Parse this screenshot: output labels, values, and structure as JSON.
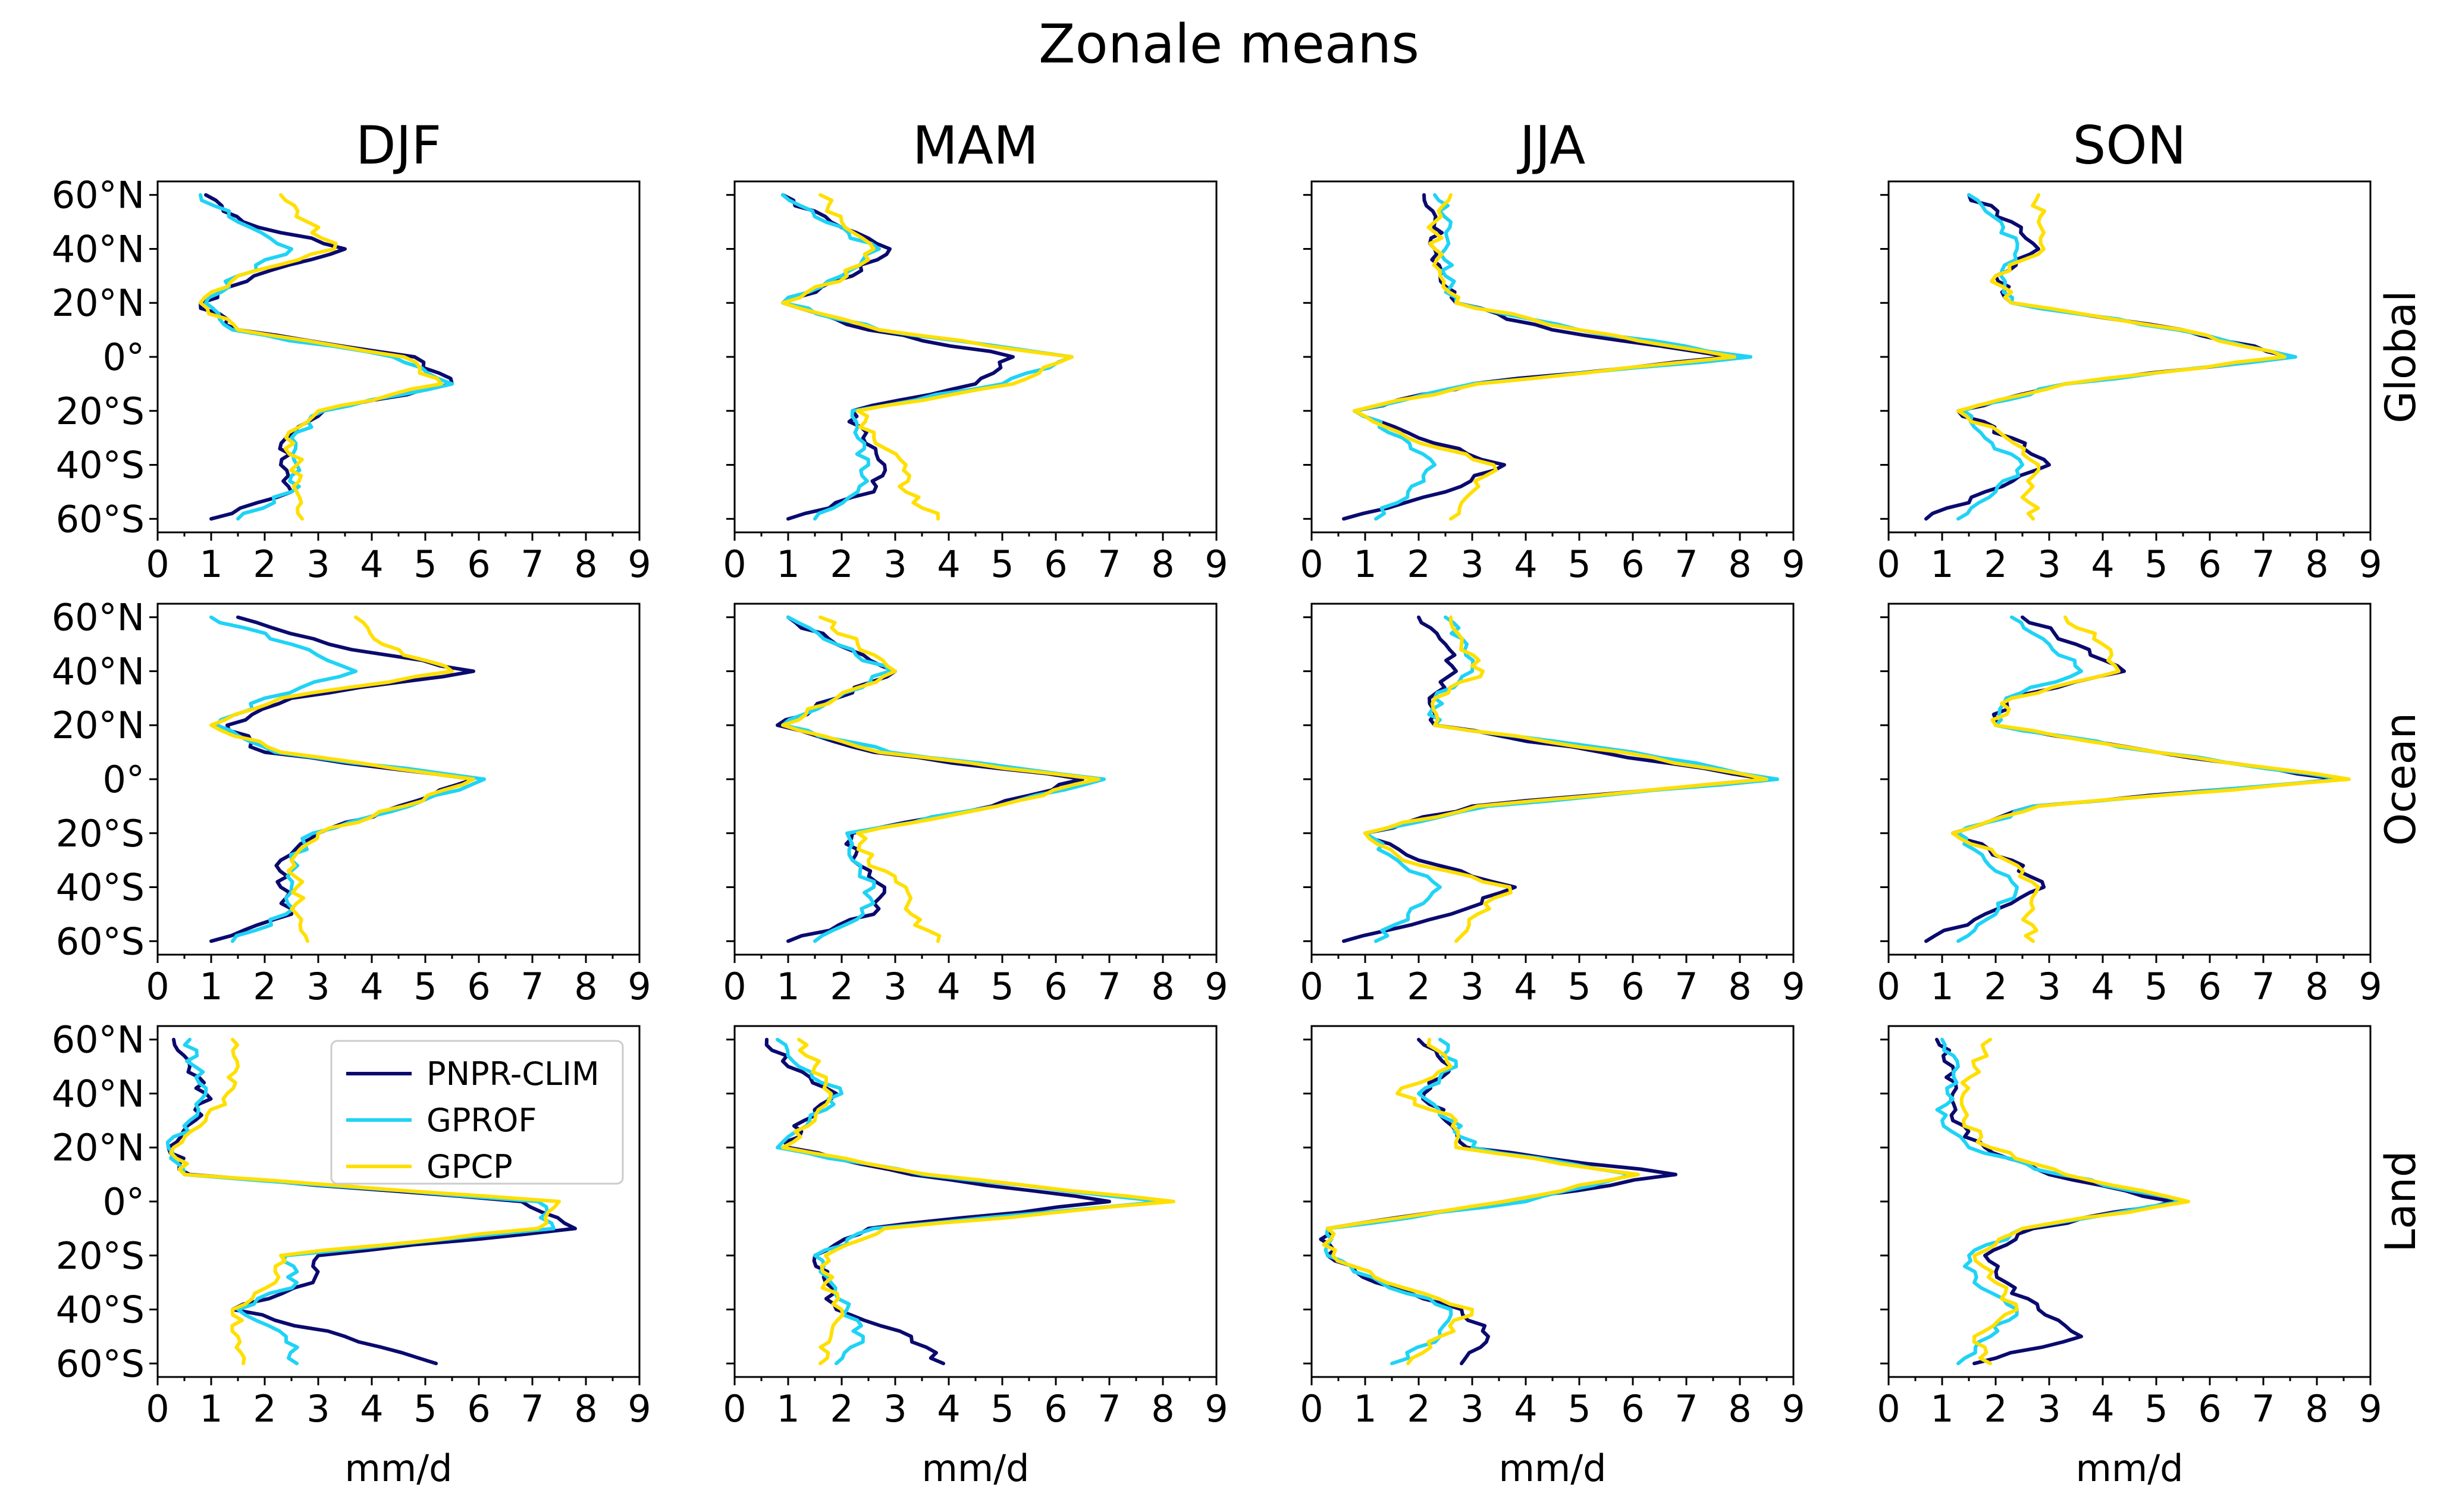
{
  "chart_data": {
    "type": "line",
    "title": "Zonale means",
    "columns": [
      "DJF",
      "MAM",
      "JJA",
      "SON"
    ],
    "rows": [
      "Global",
      "Ocean",
      "Land"
    ],
    "xlabel": "mm/d",
    "xlim": [
      0,
      9
    ],
    "ylim": [
      -65,
      65
    ],
    "x_ticks": [
      "0",
      "1",
      "2",
      "3",
      "4",
      "5",
      "6",
      "7",
      "8",
      "9"
    ],
    "y_ticks": [
      {
        "value": 60,
        "label": "60°N"
      },
      {
        "value": 40,
        "label": "40°N"
      },
      {
        "value": 20,
        "label": "20°N"
      },
      {
        "value": 0,
        "label": "0°"
      },
      {
        "value": -20,
        "label": "20°S"
      },
      {
        "value": -40,
        "label": "40°S"
      },
      {
        "value": -60,
        "label": "60°S"
      }
    ],
    "legend": {
      "location": "upper-right of Land/DJF panel",
      "entries": [
        "PNPR-CLIM",
        "GPROF",
        "GPCP"
      ]
    },
    "series_styles": [
      {
        "name": "PNPR-CLIM",
        "color": "#0a0a6e"
      },
      {
        "name": "GPROF",
        "color": "#1fd3f5"
      },
      {
        "name": "GPCP",
        "color": "#ffdf00"
      }
    ],
    "lat": [
      60,
      50,
      40,
      30,
      20,
      10,
      0,
      -10,
      -20,
      -30,
      -40,
      -50,
      -60
    ],
    "panels": [
      [
        {
          "PNPR-CLIM": [
            0.9,
            1.6,
            3.5,
            1.8,
            0.8,
            1.5,
            4.8,
            5.5,
            3.1,
            2.4,
            2.3,
            2.5,
            1.0
          ],
          "GPROF": [
            0.8,
            1.5,
            2.5,
            1.5,
            0.9,
            1.4,
            4.4,
            5.5,
            3.1,
            2.5,
            2.6,
            2.5,
            1.5
          ],
          "GPCP": [
            2.3,
            2.8,
            3.3,
            1.5,
            0.8,
            1.5,
            4.6,
            5.3,
            3.0,
            2.4,
            2.6,
            2.6,
            2.7
          ]
        },
        {
          "PNPR-CLIM": [
            0.9,
            1.8,
            2.9,
            2.2,
            0.9,
            2.5,
            5.2,
            4.5,
            2.2,
            2.4,
            2.8,
            2.6,
            1.0
          ],
          "GPROF": [
            0.9,
            1.7,
            2.7,
            2.0,
            0.9,
            2.7,
            6.3,
            5.0,
            2.2,
            2.3,
            2.5,
            2.3,
            1.5
          ],
          "GPCP": [
            1.6,
            2.0,
            2.6,
            2.1,
            0.9,
            2.7,
            6.3,
            5.2,
            2.3,
            2.6,
            3.2,
            3.2,
            3.8
          ]
        },
        {
          "PNPR-CLIM": [
            2.1,
            2.3,
            2.3,
            2.4,
            2.7,
            4.5,
            7.8,
            3.0,
            0.8,
            2.0,
            3.6,
            2.5,
            0.6
          ],
          "GPROF": [
            2.3,
            2.6,
            2.5,
            2.5,
            2.7,
            5.0,
            8.2,
            3.0,
            0.8,
            1.7,
            2.3,
            1.8,
            1.2
          ],
          "GPCP": [
            2.6,
            2.3,
            2.3,
            2.4,
            2.7,
            5.0,
            7.9,
            3.1,
            0.8,
            1.8,
            3.4,
            3.0,
            2.6
          ]
        },
        {
          "PNPR-CLIM": [
            1.5,
            2.3,
            2.8,
            2.0,
            2.3,
            5.5,
            7.5,
            3.3,
            1.3,
            2.3,
            3.0,
            1.8,
            0.7
          ],
          "GPROF": [
            1.5,
            2.1,
            2.4,
            2.1,
            2.3,
            5.4,
            7.6,
            3.3,
            1.4,
            1.8,
            2.5,
            2.0,
            1.3
          ],
          "GPCP": [
            2.8,
            2.8,
            2.9,
            2.0,
            2.3,
            5.5,
            7.4,
            3.3,
            1.3,
            2.2,
            2.8,
            2.6,
            2.7
          ]
        }
      ],
      [
        {
          "PNPR-CLIM": [
            1.5,
            3.2,
            5.9,
            2.5,
            1.3,
            2.0,
            5.9,
            4.5,
            3.0,
            2.3,
            2.3,
            2.5,
            1.0
          ],
          "GPROF": [
            1.0,
            2.5,
            3.7,
            2.0,
            1.1,
            2.2,
            6.1,
            4.7,
            2.9,
            2.5,
            2.5,
            2.4,
            1.4
          ],
          "GPCP": [
            3.7,
            4.2,
            5.5,
            2.3,
            1.0,
            2.3,
            5.9,
            4.6,
            3.0,
            2.5,
            2.6,
            2.6,
            2.8
          ]
        },
        {
          "PNPR-CLIM": [
            1.0,
            1.9,
            3.0,
            1.9,
            0.8,
            2.6,
            6.5,
            4.8,
            2.2,
            2.2,
            2.8,
            2.6,
            1.0
          ],
          "GPROF": [
            1.0,
            1.9,
            2.9,
            1.9,
            0.9,
            2.9,
            6.9,
            4.9,
            2.1,
            2.2,
            2.6,
            2.4,
            1.5
          ],
          "GPCP": [
            1.6,
            2.3,
            3.0,
            1.9,
            0.9,
            2.7,
            6.8,
            4.9,
            2.3,
            2.5,
            3.2,
            3.3,
            3.8
          ]
        },
        {
          "PNPR-CLIM": [
            2.0,
            2.5,
            2.7,
            2.2,
            2.3,
            5.4,
            8.5,
            3.0,
            1.0,
            2.0,
            3.8,
            2.6,
            0.6
          ],
          "GPROF": [
            2.5,
            2.9,
            3.0,
            2.3,
            2.3,
            6.0,
            8.7,
            3.3,
            1.0,
            1.6,
            2.4,
            1.8,
            1.2
          ],
          "GPCP": [
            2.6,
            2.8,
            3.2,
            2.3,
            2.3,
            5.8,
            8.5,
            3.1,
            1.0,
            1.7,
            3.7,
            3.1,
            2.7
          ]
        },
        {
          "PNPR-CLIM": [
            2.5,
            3.5,
            4.4,
            2.2,
            2.0,
            5.0,
            8.4,
            2.7,
            1.2,
            2.3,
            2.9,
            1.8,
            0.7
          ],
          "GPROF": [
            2.3,
            3.0,
            3.6,
            2.2,
            2.0,
            5.0,
            8.5,
            2.7,
            1.3,
            1.8,
            2.4,
            2.0,
            1.3
          ],
          "GPCP": [
            3.3,
            4.0,
            4.3,
            2.3,
            2.0,
            5.0,
            8.6,
            2.8,
            1.2,
            2.2,
            2.8,
            2.6,
            2.7
          ]
        }
      ],
      [
        {
          "PNPR-CLIM": [
            0.3,
            0.6,
            0.9,
            0.7,
            0.2,
            0.6,
            6.8,
            7.8,
            3.0,
            2.9,
            1.4,
            3.5,
            5.2
          ],
          "GPROF": [
            0.6,
            0.7,
            0.9,
            0.6,
            0.2,
            0.5,
            7.1,
            7.4,
            2.4,
            2.6,
            1.5,
            2.4,
            2.6
          ],
          "GPCP": [
            1.4,
            1.5,
            1.3,
            0.9,
            0.3,
            0.5,
            7.5,
            7.1,
            2.3,
            2.2,
            1.4,
            1.5,
            1.6
          ]
        },
        {
          "PNPR-CLIM": [
            0.6,
            1.0,
            1.9,
            1.3,
            1.0,
            3.3,
            7.0,
            2.5,
            1.5,
            1.7,
            1.9,
            3.3,
            3.9
          ],
          "GPROF": [
            0.8,
            1.2,
            2.0,
            1.4,
            0.8,
            3.5,
            8.0,
            2.6,
            1.5,
            1.8,
            2.1,
            2.4,
            1.9
          ],
          "GPCP": [
            1.2,
            1.5,
            1.8,
            1.5,
            0.9,
            3.6,
            8.2,
            2.8,
            1.7,
            1.7,
            2.0,
            1.8,
            1.6
          ]
        },
        {
          "PNPR-CLIM": [
            2.0,
            2.6,
            2.1,
            2.5,
            2.9,
            6.8,
            3.6,
            0.3,
            0.3,
            1.2,
            2.8,
            3.3,
            2.8
          ],
          "GPROF": [
            2.4,
            2.7,
            2.0,
            2.6,
            3.0,
            6.0,
            4.0,
            0.3,
            0.3,
            1.3,
            2.6,
            2.4,
            1.5
          ],
          "GPCP": [
            2.2,
            2.6,
            1.6,
            2.7,
            2.7,
            6.1,
            3.6,
            0.3,
            0.4,
            1.4,
            3.0,
            2.4,
            1.8
          ]
        },
        {
          "PNPR-CLIM": [
            0.9,
            1.2,
            1.2,
            1.2,
            1.8,
            3.0,
            5.3,
            2.7,
            1.8,
            2.2,
            2.8,
            3.6,
            1.6
          ],
          "GPROF": [
            1.0,
            1.3,
            1.1,
            1.0,
            1.5,
            3.2,
            5.5,
            2.5,
            1.5,
            1.6,
            2.4,
            1.9,
            1.3
          ],
          "GPCP": [
            1.9,
            1.6,
            1.4,
            1.4,
            1.9,
            3.3,
            5.6,
            2.5,
            1.6,
            2.0,
            2.4,
            1.6,
            1.9
          ]
        }
      ]
    ]
  }
}
